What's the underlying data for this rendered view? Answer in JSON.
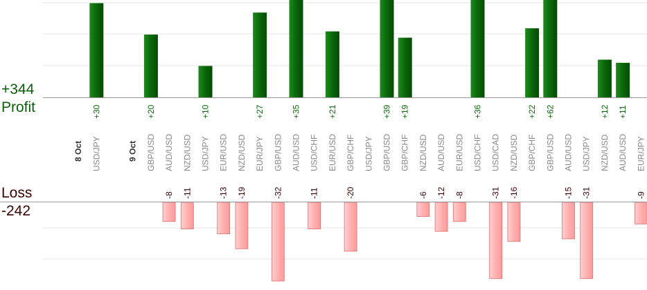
{
  "summary": {
    "profit_total": "+344",
    "profit_label": "Profit",
    "loss_label": "Loss",
    "loss_total": "-242"
  },
  "colors": {
    "profit_bar": "#0b6a0b",
    "profit_text": "#0a6a0a",
    "loss_bar": "#ffb3b3",
    "loss_bar_edge": "#e06f6f",
    "loss_text": "#3a0000",
    "grid": "#e6e6e6",
    "axis": "#999999",
    "date_text": "#333333",
    "pair_text": "#888888"
  },
  "chart_data": {
    "type": "bar",
    "title": "",
    "profit_axis_max": 31,
    "loss_axis_max": 32,
    "slots": [
      {
        "kind": "date",
        "label": "8 Oct"
      },
      {
        "kind": "pair",
        "label": "USD/JPY",
        "profit": "+30",
        "profit_value": 30
      },
      {
        "kind": "gap"
      },
      {
        "kind": "date",
        "label": "9 Oct"
      },
      {
        "kind": "pair",
        "label": "GBP/USD",
        "profit": "+20",
        "profit_value": 20
      },
      {
        "kind": "pair",
        "label": "AUD/USD",
        "loss": "-8",
        "loss_value": 8
      },
      {
        "kind": "pair",
        "label": "NZD/USD",
        "loss": "-11",
        "loss_value": 11
      },
      {
        "kind": "pair",
        "label": "USD/JPY",
        "profit": "+10",
        "profit_value": 10
      },
      {
        "kind": "pair",
        "label": "EUR/USD",
        "loss": "-13",
        "loss_value": 13
      },
      {
        "kind": "pair",
        "label": "NZD/USD",
        "loss": "-19",
        "loss_value": 19
      },
      {
        "kind": "pair",
        "label": "EUR/JPY",
        "profit": "+27",
        "profit_value": 27
      },
      {
        "kind": "pair",
        "label": "GBP/USD",
        "loss": "-32",
        "loss_value": 32
      },
      {
        "kind": "pair",
        "label": "AUD/USD",
        "profit": "+35",
        "profit_value": 35
      },
      {
        "kind": "pair",
        "label": "USD/CHF",
        "loss": "-11",
        "loss_value": 11
      },
      {
        "kind": "pair",
        "label": "EUR/USD",
        "profit": "+21",
        "profit_value": 21
      },
      {
        "kind": "pair",
        "label": "GBP/CHF",
        "loss": "-20",
        "loss_value": 20
      },
      {
        "kind": "pair",
        "label": "USD/JPY"
      },
      {
        "kind": "pair",
        "label": "GBP/USD",
        "profit": "+39",
        "profit_value": 39
      },
      {
        "kind": "pair",
        "label": "GBP/CHF",
        "profit": "+19",
        "profit_value": 19
      },
      {
        "kind": "pair",
        "label": "NZD/USD",
        "loss": "-6",
        "loss_value": 6
      },
      {
        "kind": "pair",
        "label": "AUD/USD",
        "loss": "-12",
        "loss_value": 12
      },
      {
        "kind": "pair",
        "label": "EUR/USD",
        "loss": "-8",
        "loss_value": 8
      },
      {
        "kind": "pair",
        "label": "USD/CHF",
        "profit": "+36",
        "profit_value": 36
      },
      {
        "kind": "pair",
        "label": "USD/CAD",
        "loss": "-31",
        "loss_value": 31
      },
      {
        "kind": "pair",
        "label": "NZD/USD",
        "loss": "-16",
        "loss_value": 16
      },
      {
        "kind": "pair",
        "label": "GBP/CHF",
        "profit": "+22",
        "profit_value": 22
      },
      {
        "kind": "pair",
        "label": "GBP/USD",
        "profit": "+62",
        "profit_value": 62
      },
      {
        "kind": "pair",
        "label": "AUD/USD",
        "loss": "-15",
        "loss_value": 15
      },
      {
        "kind": "pair",
        "label": "USD/JPY",
        "loss": "-31",
        "loss_value": 31
      },
      {
        "kind": "pair",
        "label": "NZD/USD",
        "profit": "+12",
        "profit_value": 12
      },
      {
        "kind": "pair",
        "label": "AUD/USD",
        "profit": "+11",
        "profit_value": 11
      },
      {
        "kind": "pair",
        "label": "EUR/JPY",
        "loss": "-9",
        "loss_value": 9
      }
    ]
  }
}
